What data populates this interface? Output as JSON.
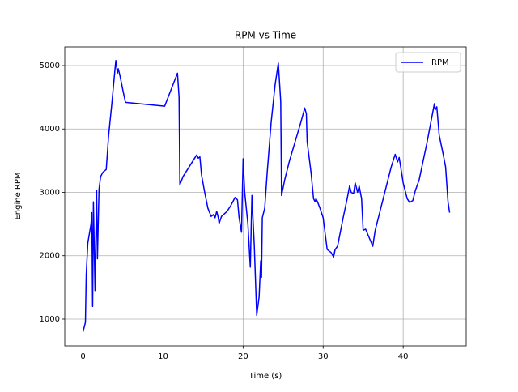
{
  "chart_data": {
    "type": "line",
    "title": "RPM vs Time",
    "xlabel": "Time (s)",
    "ylabel": "Engine RPM",
    "x": [
      0,
      0.3,
      0.4,
      0.6,
      1.0,
      1.1,
      1.2,
      1.3,
      1.5,
      1.7,
      1.8,
      2.0,
      2.2,
      2.5,
      2.9,
      3.2,
      3.6,
      4.0,
      4.1,
      4.3,
      4.4,
      4.6,
      5.0,
      5.3,
      10.2,
      11.8,
      12.0,
      12.1,
      12.5,
      14.2,
      14.4,
      14.6,
      14.8,
      15.2,
      15.6,
      16.0,
      16.3,
      16.5,
      16.7,
      16.9,
      17.0,
      17.3,
      18.0,
      18.5,
      19.0,
      19.3,
      19.5,
      19.8,
      20.0,
      20.2,
      20.6,
      20.9,
      21.1,
      21.4,
      21.7,
      22.0,
      22.2,
      22.3,
      22.4,
      22.7,
      23.0,
      23.5,
      24.0,
      24.4,
      24.7,
      24.8,
      25.2,
      25.8,
      26.5,
      27.2,
      27.7,
      27.9,
      28.0,
      28.5,
      28.8,
      29.0,
      29.1,
      29.3,
      29.6,
      30.0,
      30.5,
      31.0,
      31.3,
      31.5,
      31.8,
      32.5,
      33.0,
      33.3,
      33.5,
      33.8,
      34.0,
      34.3,
      34.5,
      34.8,
      35.0,
      35.3,
      36.2,
      36.5,
      37.5,
      38.5,
      39.0,
      39.3,
      39.5,
      40.0,
      40.5,
      40.8,
      41.2,
      41.5,
      42.0,
      43.0,
      43.9,
      44.0,
      44.2,
      44.5,
      45.0,
      45.3,
      45.6,
      45.8
    ],
    "series": [
      {
        "name": "RPM",
        "color": "#0000ff",
        "values": [
          800,
          950,
          1700,
          2200,
          2500,
          2680,
          1200,
          2850,
          1450,
          3030,
          1950,
          3050,
          3250,
          3320,
          3360,
          3900,
          4400,
          4950,
          5080,
          4880,
          4950,
          4850,
          4600,
          4420,
          4360,
          4880,
          4500,
          3120,
          3250,
          3590,
          3540,
          3560,
          3280,
          3000,
          2750,
          2620,
          2650,
          2600,
          2700,
          2600,
          2510,
          2620,
          2700,
          2800,
          2920,
          2880,
          2600,
          2370,
          3530,
          3000,
          2500,
          1820,
          2950,
          2150,
          1060,
          1350,
          1920,
          1660,
          2600,
          2750,
          3300,
          4100,
          4700,
          5040,
          4430,
          2950,
          3200,
          3500,
          3800,
          4100,
          4330,
          4240,
          3800,
          3300,
          2900,
          2850,
          2900,
          2850,
          2750,
          2600,
          2100,
          2050,
          1980,
          2100,
          2150,
          2600,
          2900,
          3100,
          3000,
          2980,
          3150,
          3000,
          3100,
          2900,
          2400,
          2420,
          2150,
          2400,
          2900,
          3400,
          3600,
          3480,
          3550,
          3150,
          2900,
          2840,
          2870,
          3020,
          3200,
          3800,
          4400,
          4300,
          4350,
          3900,
          3600,
          3400,
          2850,
          2680
        ]
      }
    ],
    "xlim": [
      -2.28,
      47.87
    ],
    "ylim": [
      578,
      5294
    ],
    "xticks": [
      0,
      10,
      20,
      30,
      40
    ],
    "yticks": [
      1000,
      2000,
      3000,
      4000,
      5000
    ],
    "grid": true,
    "legend": "upper right"
  }
}
